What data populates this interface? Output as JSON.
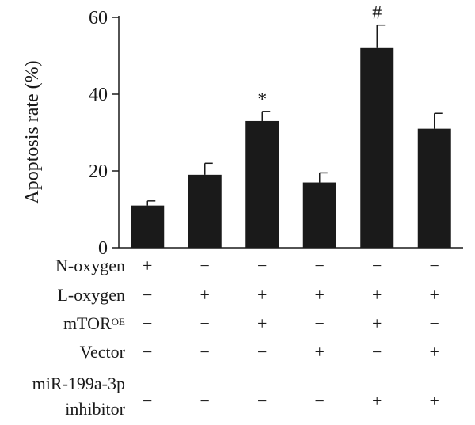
{
  "chart_data": {
    "type": "bar",
    "ylabel": "Apoptosis rate (%)",
    "ylim": [
      0,
      60
    ],
    "yticks": [
      0,
      20,
      40,
      60
    ],
    "values": [
      11,
      19,
      33,
      17,
      52,
      31
    ],
    "errors": [
      1.2,
      3.0,
      2.5,
      2.5,
      6.0,
      4.0
    ],
    "annotations": [
      "",
      "",
      "*",
      "",
      "#",
      ""
    ],
    "bar_color": "#1a1a1a",
    "conditions": [
      {
        "label": "N-oxygen",
        "signs": [
          "+",
          "−",
          "−",
          "−",
          "−",
          "−"
        ]
      },
      {
        "label": "L-oxygen",
        "signs": [
          "−",
          "+",
          "+",
          "+",
          "+",
          "+"
        ]
      },
      {
        "label": "mTOR",
        "superscript": "OE",
        "signs": [
          "−",
          "−",
          "+",
          "−",
          "+",
          "−"
        ]
      },
      {
        "label": "Vector",
        "signs": [
          "−",
          "−",
          "−",
          "+",
          "−",
          "+"
        ]
      },
      {
        "label": "miR-199a-3p",
        "label_line2": "inhibitor",
        "signs": [
          "−",
          "−",
          "−",
          "−",
          "+",
          "+"
        ]
      }
    ]
  }
}
